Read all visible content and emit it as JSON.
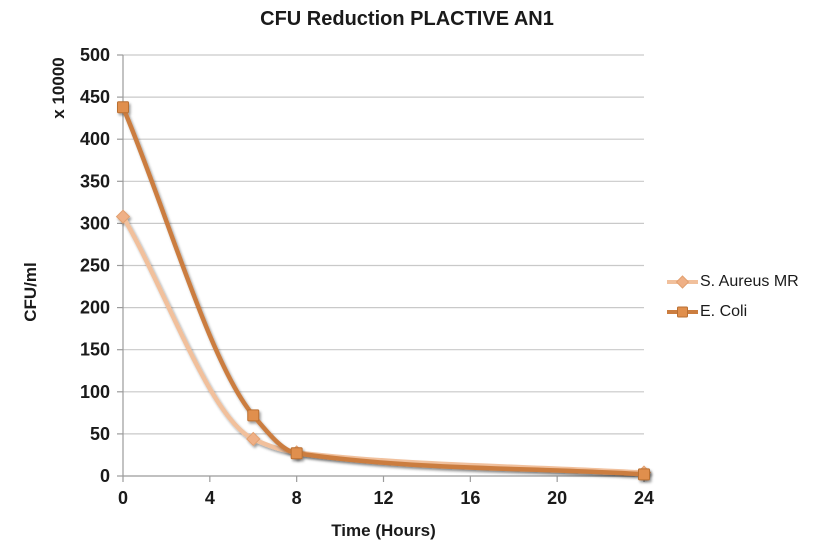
{
  "chart_data": {
    "type": "line",
    "title": "CFU Reduction PLACTIVE AN1",
    "xlabel": "Time (Hours)",
    "ylabel": "CFU/ml",
    "y_unit_label": "x 10000",
    "x": [
      0,
      6,
      8,
      24
    ],
    "series": [
      {
        "name": "S. Aureus MR",
        "values": [
          308,
          44,
          28,
          4
        ],
        "marker": "diamond",
        "line_color": "#F1C09C",
        "marker_color": "#EFB086",
        "marker_edge": "#E2A070"
      },
      {
        "name": "E. Coli",
        "values": [
          438,
          72,
          27,
          2
        ],
        "marker": "square",
        "line_color": "#CB7D3F",
        "marker_color": "#E08F4D",
        "marker_edge": "#B96F33"
      }
    ],
    "x_ticks": [
      0,
      4,
      8,
      12,
      16,
      20,
      24
    ],
    "y_ticks": [
      0,
      50,
      100,
      150,
      200,
      250,
      300,
      350,
      400,
      450,
      500
    ],
    "xlim": [
      0,
      24
    ],
    "ylim": [
      0,
      500
    ],
    "grid": "horizontal",
    "smoothed": true,
    "legend_position": "right",
    "colors": {
      "grid": "#C9C9C9",
      "axis": "#9B9B9B",
      "text": "#1A1A1A",
      "background": "#FFFFFF"
    }
  }
}
